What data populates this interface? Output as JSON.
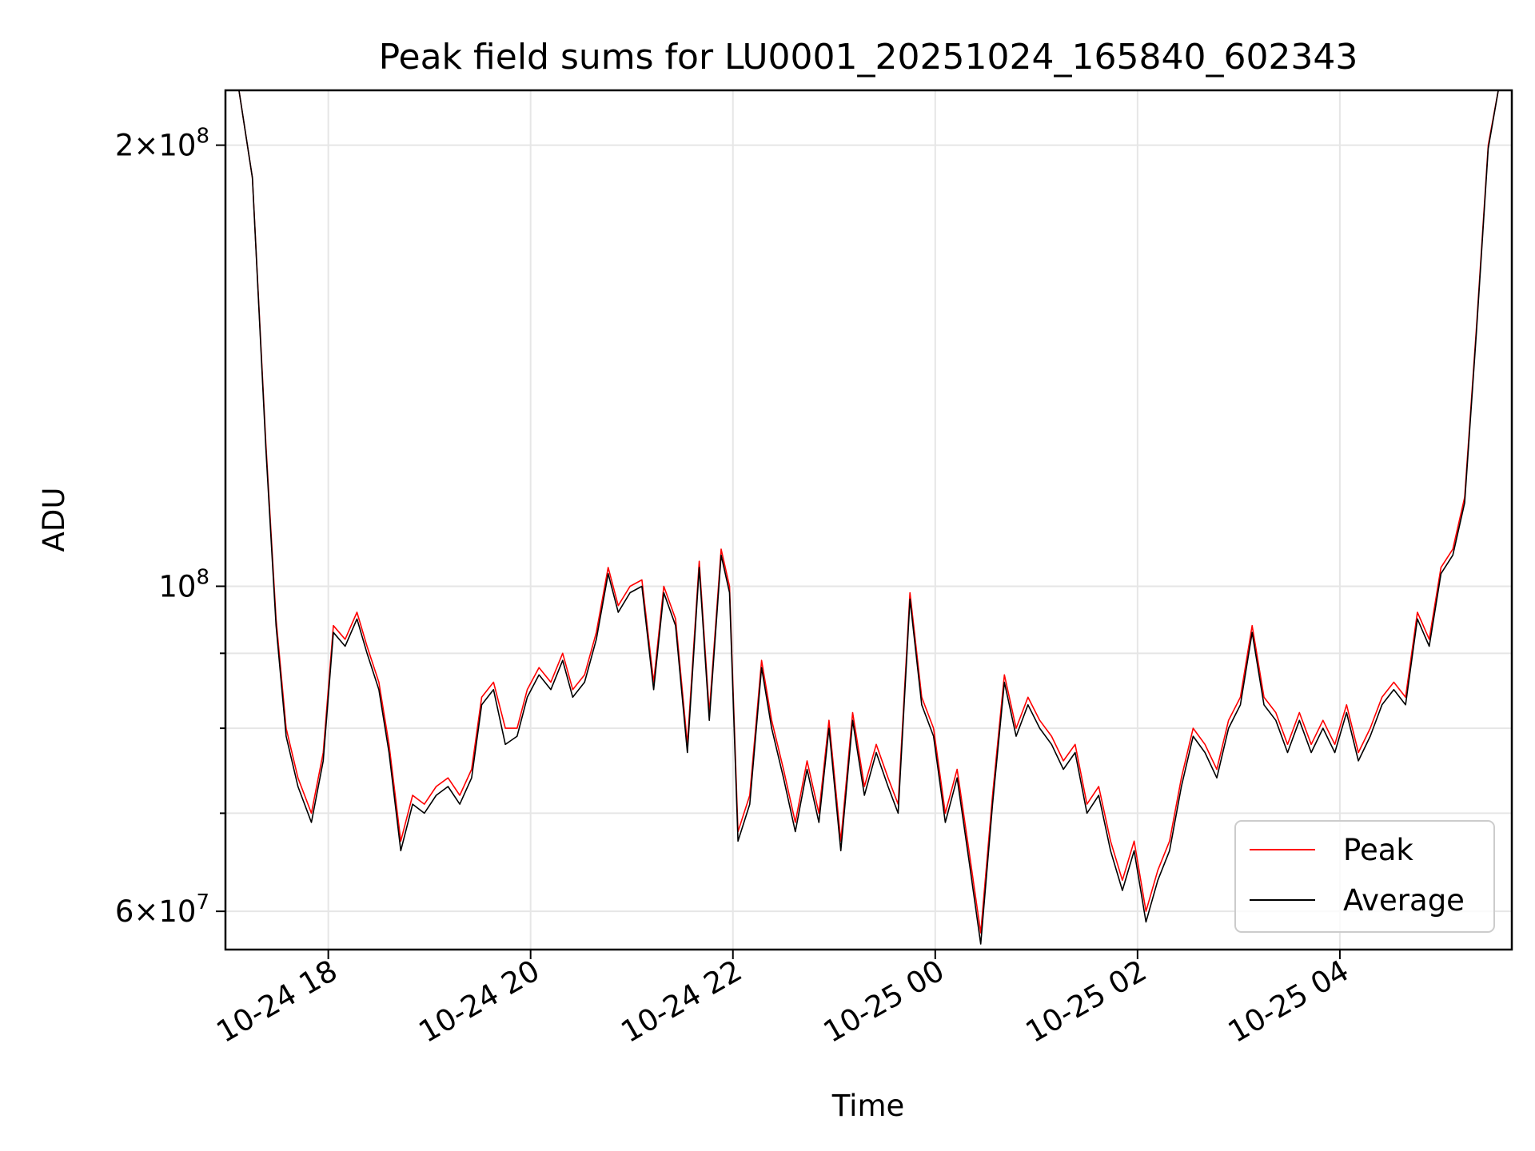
{
  "chart_data": {
    "type": "line",
    "title": "Peak field sums for LU0001_20251024_165840_602343",
    "xlabel": "Time",
    "ylabel": "ADU",
    "yscale": "log",
    "grid": true,
    "legend_position": "lower right",
    "x_ticks": [
      {
        "label": "10-24 18",
        "value": "2025-10-24T18:00"
      },
      {
        "label": "10-24 20",
        "value": "2025-10-24T20:00"
      },
      {
        "label": "10-24 22",
        "value": "2025-10-24T22:00"
      },
      {
        "label": "10-25 00",
        "value": "2025-10-25T00:00"
      },
      {
        "label": "10-25 02",
        "value": "2025-10-25T02:00"
      },
      {
        "label": "10-25 04",
        "value": "2025-10-25T04:00"
      }
    ],
    "y_ticks": [
      {
        "label": "2×10⁸",
        "value": 200000000,
        "mantissa": "2",
        "exponent": "8"
      },
      {
        "label": "10⁸",
        "value": 100000000,
        "mantissa": "",
        "exponent": "8"
      },
      {
        "label": "6×10⁷",
        "value": 60000000,
        "mantissa": "6",
        "exponent": "7"
      }
    ],
    "y_minor_ticks": [
      70000000,
      80000000,
      90000000
    ],
    "xlim": [
      "2025-10-24T16:59",
      "2025-10-25T05:42"
    ],
    "ylim": [
      56500000,
      218000000
    ],
    "series": [
      {
        "name": "Peak",
        "color": "#ff0000",
        "points": [
          [
            "2025-10-24T17:07",
            218000000
          ],
          [
            "2025-10-24T17:15",
            190000000
          ],
          [
            "2025-10-24T17:23",
            125000000
          ],
          [
            "2025-10-24T17:29",
            95000000
          ],
          [
            "2025-10-24T17:35",
            80000000
          ],
          [
            "2025-10-24T17:42",
            74000000
          ],
          [
            "2025-10-24T17:50",
            70000000
          ],
          [
            "2025-10-24T17:57",
            77000000
          ],
          [
            "2025-10-24T18:03",
            94000000
          ],
          [
            "2025-10-24T18:10",
            92000000
          ],
          [
            "2025-10-24T18:17",
            96000000
          ],
          [
            "2025-10-24T18:23",
            91000000
          ],
          [
            "2025-10-24T18:30",
            86000000
          ],
          [
            "2025-10-24T18:36",
            78000000
          ],
          [
            "2025-10-24T18:43",
            67000000
          ],
          [
            "2025-10-24T18:50",
            72000000
          ],
          [
            "2025-10-24T18:57",
            71000000
          ],
          [
            "2025-10-24T19:04",
            73000000
          ],
          [
            "2025-10-24T19:11",
            74000000
          ],
          [
            "2025-10-24T19:18",
            72000000
          ],
          [
            "2025-10-24T19:25",
            75000000
          ],
          [
            "2025-10-24T19:31",
            84000000
          ],
          [
            "2025-10-24T19:38",
            86000000
          ],
          [
            "2025-10-24T19:45",
            80000000
          ],
          [
            "2025-10-24T19:52",
            80000000
          ],
          [
            "2025-10-24T19:58",
            85000000
          ],
          [
            "2025-10-24T20:05",
            88000000
          ],
          [
            "2025-10-24T20:12",
            86000000
          ],
          [
            "2025-10-24T20:19",
            90000000
          ],
          [
            "2025-10-24T20:25",
            85000000
          ],
          [
            "2025-10-24T20:32",
            87000000
          ],
          [
            "2025-10-24T20:39",
            93000000
          ],
          [
            "2025-10-24T20:46",
            103000000
          ],
          [
            "2025-10-24T20:52",
            97000000
          ],
          [
            "2025-10-24T20:59",
            100000000
          ],
          [
            "2025-10-24T21:06",
            101000000
          ],
          [
            "2025-10-24T21:13",
            86000000
          ],
          [
            "2025-10-24T21:19",
            100000000
          ],
          [
            "2025-10-24T21:26",
            95000000
          ],
          [
            "2025-10-24T21:33",
            78000000
          ],
          [
            "2025-10-24T21:40",
            104000000
          ],
          [
            "2025-10-24T21:46",
            82000000
          ],
          [
            "2025-10-24T21:53",
            106000000
          ],
          [
            "2025-10-24T21:58",
            100000000
          ],
          [
            "2025-10-24T22:03",
            68000000
          ],
          [
            "2025-10-24T22:10",
            72000000
          ],
          [
            "2025-10-24T22:17",
            89000000
          ],
          [
            "2025-10-24T22:23",
            81000000
          ],
          [
            "2025-10-24T22:30",
            75000000
          ],
          [
            "2025-10-24T22:37",
            69000000
          ],
          [
            "2025-10-24T22:44",
            76000000
          ],
          [
            "2025-10-24T22:51",
            70000000
          ],
          [
            "2025-10-24T22:57",
            81000000
          ],
          [
            "2025-10-24T23:04",
            67000000
          ],
          [
            "2025-10-24T23:11",
            82000000
          ],
          [
            "2025-10-24T23:18",
            73000000
          ],
          [
            "2025-10-24T23:25",
            78000000
          ],
          [
            "2025-10-24T23:32",
            74000000
          ],
          [
            "2025-10-24T23:38",
            71000000
          ],
          [
            "2025-10-24T23:45",
            99000000
          ],
          [
            "2025-10-24T23:52",
            84000000
          ],
          [
            "2025-10-24T23:59",
            80000000
          ],
          [
            "2025-10-25T00:06",
            70000000
          ],
          [
            "2025-10-25T00:13",
            75000000
          ],
          [
            "2025-10-25T00:20",
            66000000
          ],
          [
            "2025-10-25T00:27",
            58000000
          ],
          [
            "2025-10-25T00:34",
            72000000
          ],
          [
            "2025-10-25T00:41",
            87000000
          ],
          [
            "2025-10-25T00:48",
            80000000
          ],
          [
            "2025-10-25T00:55",
            84000000
          ],
          [
            "2025-10-25T01:02",
            81000000
          ],
          [
            "2025-10-25T01:09",
            79000000
          ],
          [
            "2025-10-25T01:16",
            76000000
          ],
          [
            "2025-10-25T01:23",
            78000000
          ],
          [
            "2025-10-25T01:30",
            71000000
          ],
          [
            "2025-10-25T01:37",
            73000000
          ],
          [
            "2025-10-25T01:44",
            67000000
          ],
          [
            "2025-10-25T01:51",
            63000000
          ],
          [
            "2025-10-25T01:58",
            67000000
          ],
          [
            "2025-10-25T02:05",
            60000000
          ],
          [
            "2025-10-25T02:12",
            64000000
          ],
          [
            "2025-10-25T02:19",
            67000000
          ],
          [
            "2025-10-25T02:26",
            74000000
          ],
          [
            "2025-10-25T02:33",
            80000000
          ],
          [
            "2025-10-25T02:40",
            78000000
          ],
          [
            "2025-10-25T02:47",
            75000000
          ],
          [
            "2025-10-25T02:54",
            81000000
          ],
          [
            "2025-10-25T03:01",
            84000000
          ],
          [
            "2025-10-25T03:08",
            94000000
          ],
          [
            "2025-10-25T03:15",
            84000000
          ],
          [
            "2025-10-25T03:22",
            82000000
          ],
          [
            "2025-10-25T03:29",
            78000000
          ],
          [
            "2025-10-25T03:36",
            82000000
          ],
          [
            "2025-10-25T03:43",
            78000000
          ],
          [
            "2025-10-25T03:50",
            81000000
          ],
          [
            "2025-10-25T03:57",
            78000000
          ],
          [
            "2025-10-25T04:04",
            83000000
          ],
          [
            "2025-10-25T04:11",
            77000000
          ],
          [
            "2025-10-25T04:18",
            80000000
          ],
          [
            "2025-10-25T04:25",
            84000000
          ],
          [
            "2025-10-25T04:32",
            86000000
          ],
          [
            "2025-10-25T04:39",
            84000000
          ],
          [
            "2025-10-25T04:46",
            96000000
          ],
          [
            "2025-10-25T04:53",
            92000000
          ],
          [
            "2025-10-25T05:00",
            103000000
          ],
          [
            "2025-10-25T05:07",
            106000000
          ],
          [
            "2025-10-25T05:14",
            115000000
          ],
          [
            "2025-10-25T05:21",
            150000000
          ],
          [
            "2025-10-25T05:28",
            200000000
          ],
          [
            "2025-10-25T05:34",
            218000000
          ],
          [
            "2025-10-25T05:40",
            218000000
          ]
        ]
      },
      {
        "name": "Average",
        "color": "#000000",
        "points": [
          [
            "2025-10-24T17:07",
            218000000
          ],
          [
            "2025-10-24T17:15",
            190000000
          ],
          [
            "2025-10-24T17:23",
            124000000
          ],
          [
            "2025-10-24T17:29",
            94000000
          ],
          [
            "2025-10-24T17:35",
            79000000
          ],
          [
            "2025-10-24T17:42",
            73000000
          ],
          [
            "2025-10-24T17:50",
            69000000
          ],
          [
            "2025-10-24T17:57",
            76000000
          ],
          [
            "2025-10-24T18:03",
            93000000
          ],
          [
            "2025-10-24T18:10",
            91000000
          ],
          [
            "2025-10-24T18:17",
            95000000
          ],
          [
            "2025-10-24T18:23",
            90000000
          ],
          [
            "2025-10-24T18:30",
            85000000
          ],
          [
            "2025-10-24T18:36",
            77000000
          ],
          [
            "2025-10-24T18:43",
            66000000
          ],
          [
            "2025-10-24T18:50",
            71000000
          ],
          [
            "2025-10-24T18:57",
            70000000
          ],
          [
            "2025-10-24T19:04",
            72000000
          ],
          [
            "2025-10-24T19:11",
            73000000
          ],
          [
            "2025-10-24T19:18",
            71000000
          ],
          [
            "2025-10-24T19:25",
            74000000
          ],
          [
            "2025-10-24T19:31",
            83000000
          ],
          [
            "2025-10-24T19:38",
            85000000
          ],
          [
            "2025-10-24T19:45",
            78000000
          ],
          [
            "2025-10-24T19:52",
            79000000
          ],
          [
            "2025-10-24T19:58",
            84000000
          ],
          [
            "2025-10-24T20:05",
            87000000
          ],
          [
            "2025-10-24T20:12",
            85000000
          ],
          [
            "2025-10-24T20:19",
            89000000
          ],
          [
            "2025-10-24T20:25",
            84000000
          ],
          [
            "2025-10-24T20:32",
            86000000
          ],
          [
            "2025-10-24T20:39",
            92000000
          ],
          [
            "2025-10-24T20:46",
            102000000
          ],
          [
            "2025-10-24T20:52",
            96000000
          ],
          [
            "2025-10-24T20:59",
            99000000
          ],
          [
            "2025-10-24T21:06",
            100000000
          ],
          [
            "2025-10-24T21:13",
            85000000
          ],
          [
            "2025-10-24T21:19",
            99000000
          ],
          [
            "2025-10-24T21:26",
            94000000
          ],
          [
            "2025-10-24T21:33",
            77000000
          ],
          [
            "2025-10-24T21:40",
            103000000
          ],
          [
            "2025-10-24T21:46",
            81000000
          ],
          [
            "2025-10-24T21:53",
            105000000
          ],
          [
            "2025-10-24T21:58",
            99000000
          ],
          [
            "2025-10-24T22:03",
            67000000
          ],
          [
            "2025-10-24T22:10",
            71000000
          ],
          [
            "2025-10-24T22:17",
            88000000
          ],
          [
            "2025-10-24T22:23",
            80000000
          ],
          [
            "2025-10-24T22:30",
            74000000
          ],
          [
            "2025-10-24T22:37",
            68000000
          ],
          [
            "2025-10-24T22:44",
            75000000
          ],
          [
            "2025-10-24T22:51",
            69000000
          ],
          [
            "2025-10-24T22:57",
            80000000
          ],
          [
            "2025-10-24T23:04",
            66000000
          ],
          [
            "2025-10-24T23:11",
            81000000
          ],
          [
            "2025-10-24T23:18",
            72000000
          ],
          [
            "2025-10-24T23:25",
            77000000
          ],
          [
            "2025-10-24T23:32",
            73000000
          ],
          [
            "2025-10-24T23:38",
            70000000
          ],
          [
            "2025-10-24T23:45",
            98000000
          ],
          [
            "2025-10-24T23:52",
            83000000
          ],
          [
            "2025-10-24T23:59",
            79000000
          ],
          [
            "2025-10-25T00:06",
            69000000
          ],
          [
            "2025-10-25T00:13",
            74000000
          ],
          [
            "2025-10-25T00:20",
            65000000
          ],
          [
            "2025-10-25T00:27",
            57000000
          ],
          [
            "2025-10-25T00:34",
            71000000
          ],
          [
            "2025-10-25T00:41",
            86000000
          ],
          [
            "2025-10-25T00:48",
            79000000
          ],
          [
            "2025-10-25T00:55",
            83000000
          ],
          [
            "2025-10-25T01:02",
            80000000
          ],
          [
            "2025-10-25T01:09",
            78000000
          ],
          [
            "2025-10-25T01:16",
            75000000
          ],
          [
            "2025-10-25T01:23",
            77000000
          ],
          [
            "2025-10-25T01:30",
            70000000
          ],
          [
            "2025-10-25T01:37",
            72000000
          ],
          [
            "2025-10-25T01:44",
            66000000
          ],
          [
            "2025-10-25T01:51",
            62000000
          ],
          [
            "2025-10-25T01:58",
            66000000
          ],
          [
            "2025-10-25T02:05",
            59000000
          ],
          [
            "2025-10-25T02:12",
            63000000
          ],
          [
            "2025-10-25T02:19",
            66000000
          ],
          [
            "2025-10-25T02:26",
            73000000
          ],
          [
            "2025-10-25T02:33",
            79000000
          ],
          [
            "2025-10-25T02:40",
            77000000
          ],
          [
            "2025-10-25T02:47",
            74000000
          ],
          [
            "2025-10-25T02:54",
            80000000
          ],
          [
            "2025-10-25T03:01",
            83000000
          ],
          [
            "2025-10-25T03:08",
            93000000
          ],
          [
            "2025-10-25T03:15",
            83000000
          ],
          [
            "2025-10-25T03:22",
            81000000
          ],
          [
            "2025-10-25T03:29",
            77000000
          ],
          [
            "2025-10-25T03:36",
            81000000
          ],
          [
            "2025-10-25T03:43",
            77000000
          ],
          [
            "2025-10-25T03:50",
            80000000
          ],
          [
            "2025-10-25T03:57",
            77000000
          ],
          [
            "2025-10-25T04:04",
            82000000
          ],
          [
            "2025-10-25T04:11",
            76000000
          ],
          [
            "2025-10-25T04:18",
            79000000
          ],
          [
            "2025-10-25T04:25",
            83000000
          ],
          [
            "2025-10-25T04:32",
            85000000
          ],
          [
            "2025-10-25T04:39",
            83000000
          ],
          [
            "2025-10-25T04:46",
            95000000
          ],
          [
            "2025-10-25T04:53",
            91000000
          ],
          [
            "2025-10-25T05:00",
            102000000
          ],
          [
            "2025-10-25T05:07",
            105000000
          ],
          [
            "2025-10-25T05:14",
            114000000
          ],
          [
            "2025-10-25T05:21",
            149000000
          ],
          [
            "2025-10-25T05:28",
            199000000
          ],
          [
            "2025-10-25T05:34",
            218000000
          ],
          [
            "2025-10-25T05:40",
            218000000
          ]
        ]
      }
    ]
  }
}
